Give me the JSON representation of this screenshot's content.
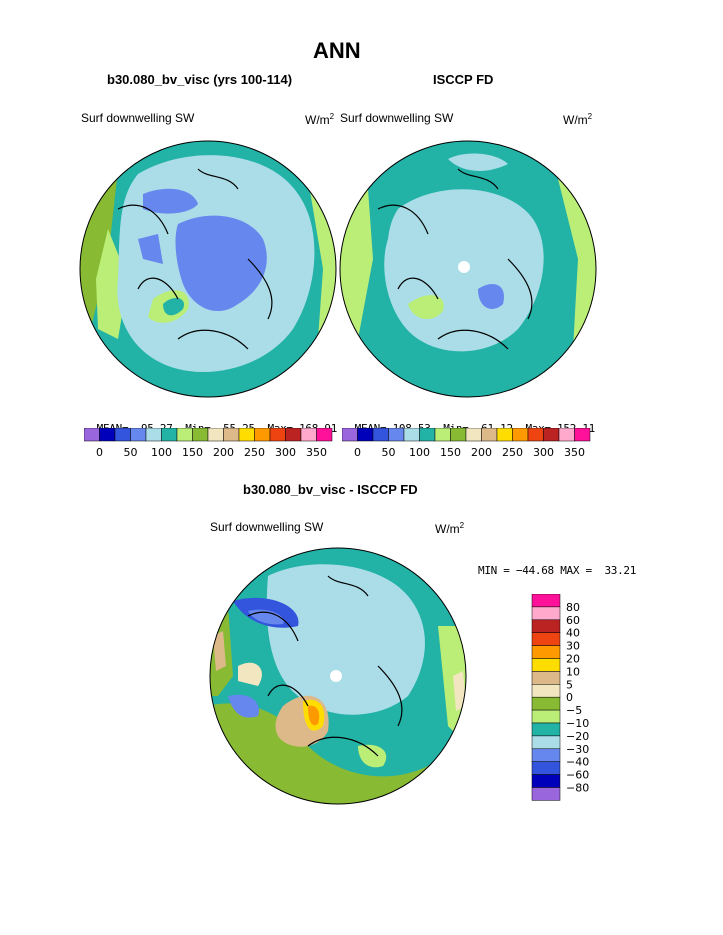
{
  "title": "ANN",
  "panels": [
    {
      "subtitle": "b30.080_bv_visc (yrs 100-114)",
      "variable": "Surf downwelling SW",
      "units": "W/m",
      "units_sup": "2",
      "stats": {
        "mean_label": "MEAN=",
        "mean": "95.27",
        "min_label": "Min=",
        "min": "55.25",
        "max_label": "Max=",
        "max": "168.91"
      }
    },
    {
      "subtitle": "ISCCP FD",
      "variable": "Surf downwelling SW",
      "units": "W/m",
      "units_sup": "2",
      "stats": {
        "mean_label": "MEAN=",
        "mean": "108.53",
        "min_label": "Min=",
        "min": "61.12",
        "max_label": "Max=",
        "max": "152.11"
      }
    }
  ],
  "abs_colorbar": {
    "colors": [
      "#9966dd",
      "#0000bb",
      "#3355dd",
      "#6688ee",
      "#aadde8",
      "#22b2a6",
      "#bbee77",
      "#88bb33",
      "#f2e6c0",
      "#ddb98a",
      "#ffdd00",
      "#ff9900",
      "#ee4411",
      "#bb2222",
      "#ffaacc",
      "#ff1199"
    ],
    "tick_labels": [
      "0",
      "50",
      "100",
      "150",
      "200",
      "250",
      "300",
      "350"
    ]
  },
  "diff_panel": {
    "subtitle": "b30.080_bv_visc - ISCCP FD",
    "variable": "Surf downwelling SW",
    "units": "W/m",
    "units_sup": "2",
    "minmax": "MIN = −44.68 MAX =  33.21",
    "colorbar": {
      "colors": [
        "#ff1199",
        "#ffaacc",
        "#bb2222",
        "#ee4411",
        "#ff9900",
        "#ffdd00",
        "#ddb98a",
        "#f2e6c0",
        "#88bb33",
        "#bbee77",
        "#22b2a6",
        "#aadde8",
        "#6688ee",
        "#3355dd",
        "#0000bb",
        "#9966dd"
      ],
      "labels": [
        "80",
        "60",
        "40",
        "30",
        "20",
        "10",
        "5",
        "0",
        "−5",
        "−10",
        "−20",
        "−30",
        "−40",
        "−60",
        "−80"
      ]
    }
  },
  "map_colors": {
    "land_light": "#aadde8",
    "teal": "#22b2a6",
    "blue": "#6688ee",
    "mid_blue": "#3355dd",
    "light_green": "#bbee77",
    "olive": "#88bb33",
    "cream": "#f2e6c0",
    "tan": "#ddb98a",
    "yellow": "#ffdd00",
    "orange": "#ff9900",
    "coast": "#000000"
  }
}
